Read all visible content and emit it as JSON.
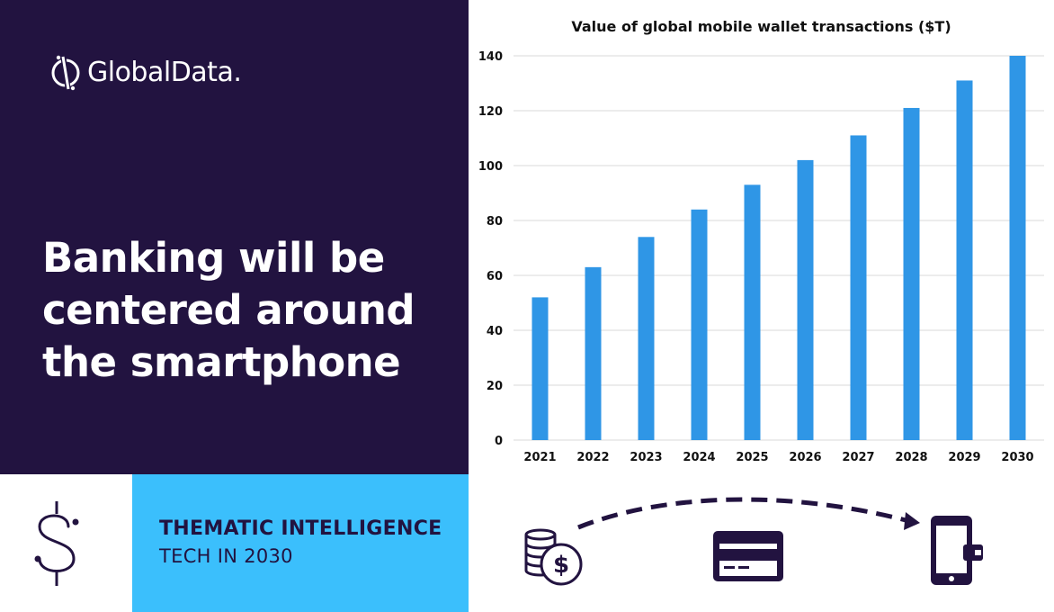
{
  "brand": {
    "name": "GlobalData."
  },
  "headline": {
    "lines": [
      "Banking will be",
      "centered around",
      "the smartphone"
    ]
  },
  "thematic": {
    "title": "THEMATIC INTELLIGENCE",
    "subtitle": "TECH IN 2030"
  },
  "colors": {
    "dark_panel": "#221340",
    "accent_cyan": "#3bbffc",
    "bar": "#2f96e6",
    "icon_dark": "#221340"
  },
  "icons": [
    "globaldata-logo-icon",
    "dollar-sign-icon",
    "coins-icon",
    "credit-card-icon",
    "smartphone-wallet-icon",
    "dashed-arrow-icon"
  ],
  "chart_data": {
    "type": "bar",
    "title": "Value of global mobile wallet transactions ($T)",
    "xlabel": "",
    "ylabel": "",
    "categories": [
      "2021",
      "2022",
      "2023",
      "2024",
      "2025",
      "2026",
      "2027",
      "2028",
      "2029",
      "2030"
    ],
    "values": [
      52,
      63,
      74,
      84,
      93,
      102,
      111,
      121,
      131,
      140
    ],
    "ylim": [
      0,
      140
    ],
    "yticks": [
      "0",
      "20",
      "40",
      "60",
      "80",
      "100",
      "120",
      "140"
    ],
    "grid": true,
    "legend": "none"
  }
}
